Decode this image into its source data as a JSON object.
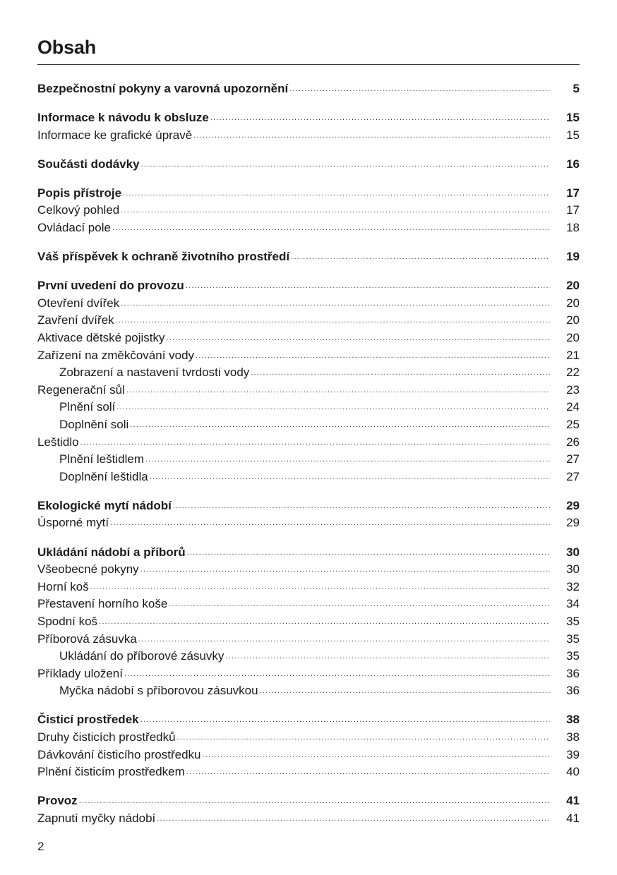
{
  "title": "Obsah",
  "page_number": "2",
  "groups": [
    [
      {
        "title": "Bezpečnostní pokyny a varovná upozornění",
        "page": "5",
        "level": 0,
        "bold": true
      }
    ],
    [
      {
        "title": "Informace k návodu k obsluze",
        "page": "15",
        "level": 0,
        "bold": true
      },
      {
        "title": "Informace ke grafické úpravě",
        "page": "15",
        "level": 0,
        "bold": false
      }
    ],
    [
      {
        "title": "Součásti dodávky",
        "page": "16",
        "level": 0,
        "bold": true
      }
    ],
    [
      {
        "title": "Popis přístroje",
        "page": "17",
        "level": 0,
        "bold": true
      },
      {
        "title": "Celkový pohled",
        "page": "17",
        "level": 0,
        "bold": false
      },
      {
        "title": "Ovládací pole",
        "page": "18",
        "level": 0,
        "bold": false
      }
    ],
    [
      {
        "title": "Váš příspěvek k ochraně životního prostředí",
        "page": "19",
        "level": 0,
        "bold": true
      }
    ],
    [
      {
        "title": "První uvedení do provozu",
        "page": "20",
        "level": 0,
        "bold": true
      },
      {
        "title": "Otevření dvířek",
        "page": "20",
        "level": 0,
        "bold": false
      },
      {
        "title": "Zavření dvířek",
        "page": "20",
        "level": 0,
        "bold": false
      },
      {
        "title": "Aktivace dětské pojistky",
        "page": "20",
        "level": 0,
        "bold": false
      },
      {
        "title": "Zařízení na změkčování vody",
        "page": "21",
        "level": 0,
        "bold": false
      },
      {
        "title": "Zobrazení a nastavení tvrdosti vody",
        "page": "22",
        "level": 1,
        "bold": false
      },
      {
        "title": "Regenerační sůl",
        "page": "23",
        "level": 0,
        "bold": false
      },
      {
        "title": "Plnění solí",
        "page": "24",
        "level": 1,
        "bold": false
      },
      {
        "title": "Doplnění soli",
        "page": "25",
        "level": 1,
        "bold": false
      },
      {
        "title": "Leštidlo",
        "page": "26",
        "level": 0,
        "bold": false
      },
      {
        "title": "Plnění leštidlem",
        "page": "27",
        "level": 1,
        "bold": false
      },
      {
        "title": "Doplnění leštidla",
        "page": "27",
        "level": 1,
        "bold": false
      }
    ],
    [
      {
        "title": "Ekologické mytí nádobí",
        "page": "29",
        "level": 0,
        "bold": true
      },
      {
        "title": "Úsporné mytí",
        "page": "29",
        "level": 0,
        "bold": false
      }
    ],
    [
      {
        "title": "Ukládání nádobí a příborů",
        "page": "30",
        "level": 0,
        "bold": true
      },
      {
        "title": "Všeobecné pokyny",
        "page": "30",
        "level": 0,
        "bold": false
      },
      {
        "title": "Horní koš",
        "page": "32",
        "level": 0,
        "bold": false
      },
      {
        "title": "Přestavení horního koše",
        "page": "34",
        "level": 0,
        "bold": false
      },
      {
        "title": "Spodní koš",
        "page": "35",
        "level": 0,
        "bold": false
      },
      {
        "title": "Příborová zásuvka",
        "page": "35",
        "level": 0,
        "bold": false
      },
      {
        "title": "Ukládání do příborové zásuvky",
        "page": "35",
        "level": 1,
        "bold": false
      },
      {
        "title": "Příklady uložení",
        "page": "36",
        "level": 0,
        "bold": false
      },
      {
        "title": "Myčka nádobí s příborovou zásuvkou",
        "page": "36",
        "level": 1,
        "bold": false
      }
    ],
    [
      {
        "title": "Čisticí prostředek",
        "page": "38",
        "level": 0,
        "bold": true
      },
      {
        "title": "Druhy čisticích prostředků",
        "page": "38",
        "level": 0,
        "bold": false
      },
      {
        "title": "Dávkování čisticího prostředku",
        "page": "39",
        "level": 0,
        "bold": false
      },
      {
        "title": "Plnění čisticím prostředkem",
        "page": "40",
        "level": 0,
        "bold": false
      }
    ],
    [
      {
        "title": "Provoz",
        "page": "41",
        "level": 0,
        "bold": true
      },
      {
        "title": "Zapnutí myčky nádobí",
        "page": "41",
        "level": 0,
        "bold": false
      }
    ]
  ]
}
